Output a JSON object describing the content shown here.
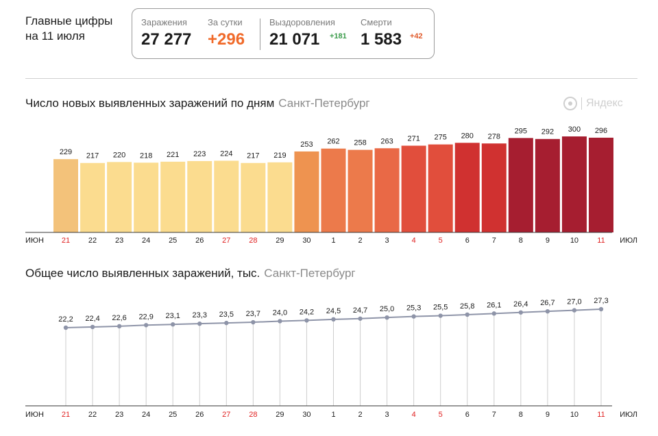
{
  "headline": {
    "line1": "Главные цифры",
    "line2": "на 11 июля"
  },
  "stats": {
    "infections": {
      "label": "Заражения",
      "value": "27 277"
    },
    "daily": {
      "label": "За сутки",
      "value": "+296"
    },
    "recoveries": {
      "label": "Выздоровления",
      "value": "21 071",
      "delta": "+181"
    },
    "deaths": {
      "label": "Смерти",
      "value": "1 583",
      "delta": "+42"
    }
  },
  "logo": {
    "text": "Яндекс"
  },
  "colors": {
    "accent_orange": "#f06a2a",
    "weekend_red": "#e02020",
    "delta_green": "#3a9b4a"
  },
  "chart_data": [
    {
      "type": "bar",
      "title": "Число новых выявленных заражений по дням",
      "subtitle": "Санкт-Петербург",
      "axis_left_label": "ИЮН",
      "axis_right_label": "ИЮЛ",
      "categories": [
        "21",
        "22",
        "23",
        "24",
        "25",
        "26",
        "27",
        "28",
        "29",
        "30",
        "1",
        "2",
        "3",
        "4",
        "5",
        "6",
        "7",
        "8",
        "9",
        "10",
        "11"
      ],
      "weekend": [
        true,
        false,
        false,
        false,
        false,
        false,
        true,
        true,
        false,
        false,
        false,
        false,
        false,
        true,
        true,
        false,
        false,
        false,
        false,
        false,
        true
      ],
      "values": [
        229,
        217,
        220,
        218,
        221,
        223,
        224,
        217,
        219,
        253,
        262,
        258,
        263,
        271,
        275,
        280,
        278,
        295,
        292,
        300,
        296
      ],
      "value_labels": [
        "229",
        "217",
        "220",
        "218",
        "221",
        "223",
        "224",
        "217",
        "219",
        "253",
        "262",
        "258",
        "263",
        "271",
        "275",
        "280",
        "278",
        "295",
        "292",
        "300",
        "296"
      ],
      "colors": [
        "#f3c27a",
        "#fbdc8f",
        "#fbdc8f",
        "#fbdc8f",
        "#fbdc8f",
        "#fbdc8f",
        "#fbdc8f",
        "#fbdc8f",
        "#fbdc8f",
        "#ee9350",
        "#ec7a4b",
        "#ec7a4b",
        "#e96946",
        "#e14e3c",
        "#e14e3c",
        "#d03130",
        "#d03130",
        "#a61e30",
        "#a61e30",
        "#a61e30",
        "#a61e30"
      ],
      "ylim": [
        0,
        300
      ]
    },
    {
      "type": "line",
      "title": "Общее число выявленных заражений, тыс.",
      "subtitle": "Санкт-Петербург",
      "axis_left_label": "ИЮН",
      "axis_right_label": "ИЮЛ",
      "categories": [
        "21",
        "22",
        "23",
        "24",
        "25",
        "26",
        "27",
        "28",
        "29",
        "30",
        "1",
        "2",
        "3",
        "4",
        "5",
        "6",
        "7",
        "8",
        "9",
        "10",
        "11"
      ],
      "weekend": [
        true,
        false,
        false,
        false,
        false,
        false,
        true,
        true,
        false,
        false,
        false,
        false,
        false,
        true,
        true,
        false,
        false,
        false,
        false,
        false,
        true
      ],
      "values": [
        22.2,
        22.4,
        22.6,
        22.9,
        23.1,
        23.3,
        23.5,
        23.7,
        24.0,
        24.2,
        24.5,
        24.7,
        25.0,
        25.3,
        25.5,
        25.8,
        26.1,
        26.4,
        26.7,
        27.0,
        27.3
      ],
      "value_labels": [
        "22,2",
        "22,4",
        "22,6",
        "22,9",
        "23,1",
        "23,3",
        "23,5",
        "23,7",
        "24,0",
        "24,2",
        "24,5",
        "24,7",
        "25,0",
        "25,3",
        "25,5",
        "25,8",
        "26,1",
        "26,4",
        "26,7",
        "27,0",
        "27,3"
      ],
      "line_color": "#8e94a8"
    }
  ]
}
